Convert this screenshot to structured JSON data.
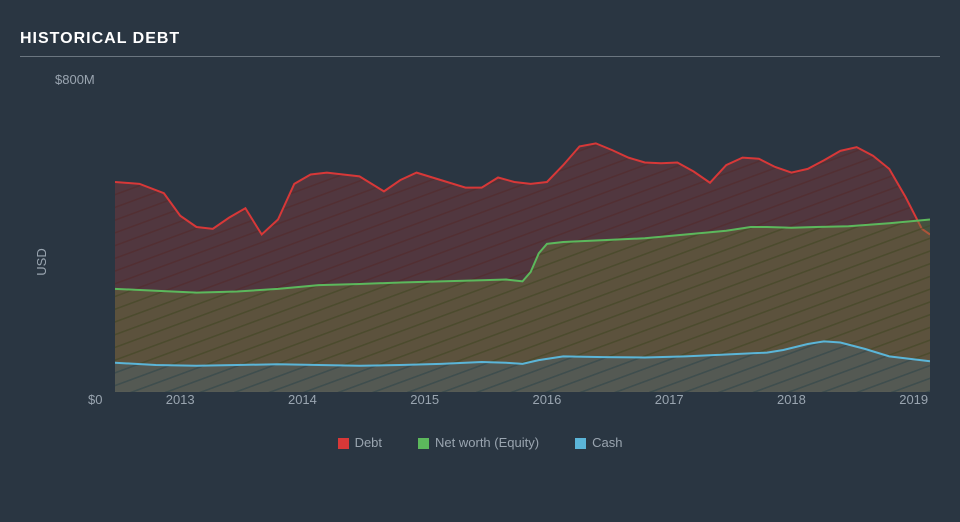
{
  "title": "HISTORICAL DEBT",
  "y_axis": {
    "label": "USD",
    "max_label": "$800M",
    "min_label": "$0",
    "min": 0,
    "max": 800
  },
  "x_axis": {
    "ticks": [
      "2013",
      "2014",
      "2015",
      "2016",
      "2017",
      "2018",
      "2019"
    ],
    "tick_positions_pct": [
      8,
      23,
      38,
      53,
      68,
      83,
      98
    ]
  },
  "background_color": "#2a3642",
  "grid_line_color": "#6b7680",
  "text_color": "#9aa5b0",
  "series": [
    {
      "name": "Debt",
      "line_color": "#d73838",
      "fill_color": "#8b3a3a",
      "fill_opacity": 0.55,
      "hatch": true,
      "points": [
        {
          "x": 0,
          "y": 560
        },
        {
          "x": 3,
          "y": 555
        },
        {
          "x": 6,
          "y": 530
        },
        {
          "x": 8,
          "y": 470
        },
        {
          "x": 10,
          "y": 440
        },
        {
          "x": 12,
          "y": 435
        },
        {
          "x": 14,
          "y": 465
        },
        {
          "x": 16,
          "y": 490
        },
        {
          "x": 17,
          "y": 455
        },
        {
          "x": 18,
          "y": 420
        },
        {
          "x": 20,
          "y": 460
        },
        {
          "x": 22,
          "y": 555
        },
        {
          "x": 24,
          "y": 580
        },
        {
          "x": 26,
          "y": 585
        },
        {
          "x": 28,
          "y": 580
        },
        {
          "x": 30,
          "y": 575
        },
        {
          "x": 33,
          "y": 535
        },
        {
          "x": 35,
          "y": 565
        },
        {
          "x": 37,
          "y": 585
        },
        {
          "x": 40,
          "y": 565
        },
        {
          "x": 43,
          "y": 545
        },
        {
          "x": 45,
          "y": 545
        },
        {
          "x": 47,
          "y": 572
        },
        {
          "x": 49,
          "y": 560
        },
        {
          "x": 51,
          "y": 555
        },
        {
          "x": 53,
          "y": 560
        },
        {
          "x": 55,
          "y": 605
        },
        {
          "x": 57,
          "y": 655
        },
        {
          "x": 59,
          "y": 663
        },
        {
          "x": 61,
          "y": 645
        },
        {
          "x": 63,
          "y": 625
        },
        {
          "x": 65,
          "y": 612
        },
        {
          "x": 67,
          "y": 610
        },
        {
          "x": 69,
          "y": 612
        },
        {
          "x": 71,
          "y": 588
        },
        {
          "x": 73,
          "y": 558
        },
        {
          "x": 75,
          "y": 605
        },
        {
          "x": 77,
          "y": 625
        },
        {
          "x": 79,
          "y": 622
        },
        {
          "x": 81,
          "y": 600
        },
        {
          "x": 83,
          "y": 585
        },
        {
          "x": 85,
          "y": 595
        },
        {
          "x": 87,
          "y": 618
        },
        {
          "x": 89,
          "y": 643
        },
        {
          "x": 91,
          "y": 653
        },
        {
          "x": 93,
          "y": 630
        },
        {
          "x": 95,
          "y": 595
        },
        {
          "x": 97,
          "y": 520
        },
        {
          "x": 99,
          "y": 435
        },
        {
          "x": 100,
          "y": 420
        }
      ]
    },
    {
      "name": "Net worth (Equity)",
      "line_color": "#5cb85c",
      "fill_color": "#6b7a3a",
      "fill_opacity": 0.5,
      "hatch": true,
      "points": [
        {
          "x": 0,
          "y": 275
        },
        {
          "x": 5,
          "y": 270
        },
        {
          "x": 10,
          "y": 265
        },
        {
          "x": 15,
          "y": 268
        },
        {
          "x": 20,
          "y": 275
        },
        {
          "x": 25,
          "y": 285
        },
        {
          "x": 30,
          "y": 288
        },
        {
          "x": 35,
          "y": 292
        },
        {
          "x": 40,
          "y": 295
        },
        {
          "x": 45,
          "y": 298
        },
        {
          "x": 48,
          "y": 300
        },
        {
          "x": 50,
          "y": 295
        },
        {
          "x": 51,
          "y": 320
        },
        {
          "x": 52,
          "y": 370
        },
        {
          "x": 53,
          "y": 395
        },
        {
          "x": 55,
          "y": 400
        },
        {
          "x": 60,
          "y": 405
        },
        {
          "x": 65,
          "y": 410
        },
        {
          "x": 70,
          "y": 420
        },
        {
          "x": 75,
          "y": 430
        },
        {
          "x": 78,
          "y": 440
        },
        {
          "x": 80,
          "y": 440
        },
        {
          "x": 83,
          "y": 438
        },
        {
          "x": 86,
          "y": 440
        },
        {
          "x": 90,
          "y": 442
        },
        {
          "x": 95,
          "y": 450
        },
        {
          "x": 100,
          "y": 460
        }
      ]
    },
    {
      "name": "Cash",
      "line_color": "#5bb5d8",
      "fill_color": "#4a6270",
      "fill_opacity": 0.55,
      "hatch": true,
      "points": [
        {
          "x": 0,
          "y": 78
        },
        {
          "x": 5,
          "y": 72
        },
        {
          "x": 10,
          "y": 70
        },
        {
          "x": 15,
          "y": 72
        },
        {
          "x": 20,
          "y": 74
        },
        {
          "x": 25,
          "y": 72
        },
        {
          "x": 30,
          "y": 70
        },
        {
          "x": 35,
          "y": 72
        },
        {
          "x": 40,
          "y": 75
        },
        {
          "x": 45,
          "y": 80
        },
        {
          "x": 48,
          "y": 78
        },
        {
          "x": 50,
          "y": 75
        },
        {
          "x": 52,
          "y": 85
        },
        {
          "x": 55,
          "y": 95
        },
        {
          "x": 60,
          "y": 93
        },
        {
          "x": 65,
          "y": 92
        },
        {
          "x": 70,
          "y": 95
        },
        {
          "x": 75,
          "y": 100
        },
        {
          "x": 80,
          "y": 105
        },
        {
          "x": 82,
          "y": 112
        },
        {
          "x": 85,
          "y": 128
        },
        {
          "x": 87,
          "y": 135
        },
        {
          "x": 89,
          "y": 132
        },
        {
          "x": 92,
          "y": 115
        },
        {
          "x": 95,
          "y": 95
        },
        {
          "x": 100,
          "y": 82
        }
      ]
    }
  ],
  "legend": [
    {
      "label": "Debt",
      "color": "#d73838"
    },
    {
      "label": "Net worth (Equity)",
      "color": "#5cb85c"
    },
    {
      "label": "Cash",
      "color": "#5bb5d8"
    }
  ]
}
